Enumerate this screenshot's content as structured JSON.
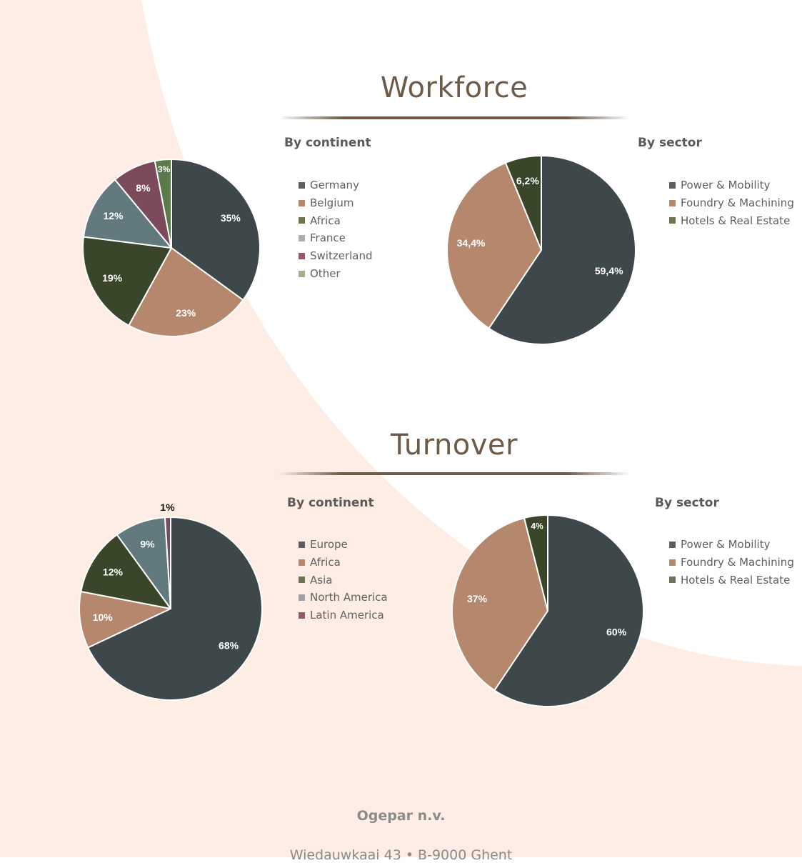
{
  "colors": {
    "background": "#fdede4",
    "title": "#6e5a48",
    "slice_border": "#ffffff"
  },
  "workforce": {
    "title": "Workforce",
    "by_continent_label": "By continent",
    "by_sector_label": "By sector"
  },
  "turnover": {
    "title": "Turnover",
    "by_continent_label": "By continent",
    "by_sector_label": "By sector"
  },
  "footer": {
    "company": "Ogepar n.v.",
    "address": "Wiedauwkaai 43 • B-9000 Ghent"
  },
  "chart_data": [
    {
      "id": "workforce-continent",
      "type": "pie",
      "title": "Workforce by continent",
      "slices": [
        {
          "label": "Germany",
          "value": 35,
          "text": "35%",
          "color": "#3e484a"
        },
        {
          "label": "Belgium",
          "value": 23,
          "text": "23%",
          "color": "#b5876d"
        },
        {
          "label": "Africa",
          "value": 19,
          "text": "19%",
          "color": "#39462a"
        },
        {
          "label": "France",
          "value": 12,
          "text": "12%",
          "color": "#627a7e"
        },
        {
          "label": "Switzerland",
          "value": 8,
          "text": "8%",
          "color": "#7b4a5d"
        },
        {
          "label": "Other",
          "value": 3,
          "text": "3%",
          "color": "#5a7a4a"
        }
      ],
      "legend": [
        {
          "label": "Germany",
          "color": "#5e5e5e"
        },
        {
          "label": "Belgium",
          "color": "#b5876d"
        },
        {
          "label": "Africa",
          "color": "#6a7352"
        },
        {
          "label": "France",
          "color": "#a9afb2"
        },
        {
          "label": "Switzerland",
          "color": "#95596d"
        },
        {
          "label": "Other",
          "color": "#a0b08a"
        }
      ]
    },
    {
      "id": "workforce-sector",
      "type": "pie",
      "title": "Workforce by sector",
      "slices": [
        {
          "label": "Power & Mobility",
          "value": 59.4,
          "text": "59,4%",
          "color": "#3e484a"
        },
        {
          "label": "Foundry & Machining",
          "value": 34.4,
          "text": "34,4%",
          "color": "#b5876d"
        },
        {
          "label": "Hotels & Real Estate",
          "value": 6.2,
          "text": "6,2%",
          "color": "#39462a"
        }
      ],
      "legend": [
        {
          "label": "Power & Mobility",
          "color": "#5e5e5e"
        },
        {
          "label": "Foundry & Machining",
          "color": "#b5876d"
        },
        {
          "label": "Hotels & Real Estate",
          "color": "#6a7352"
        }
      ]
    },
    {
      "id": "turnover-continent",
      "type": "pie",
      "title": "Turnover by continent",
      "slices": [
        {
          "label": "Europe",
          "value": 68,
          "text": "68%",
          "color": "#3e484a"
        },
        {
          "label": "Africa",
          "value": 10,
          "text": "10%",
          "color": "#b5876d"
        },
        {
          "label": "Asia",
          "value": 12,
          "text": "12%",
          "color": "#39462a"
        },
        {
          "label": "North America",
          "value": 9,
          "text": "9%",
          "color": "#627a7e"
        },
        {
          "label": "Latin America",
          "value": 1,
          "text": "1%",
          "color": "#7b4a5d"
        }
      ],
      "legend": [
        {
          "label": "Europe",
          "color": "#5e5e5e"
        },
        {
          "label": "Africa",
          "color": "#b5876d"
        },
        {
          "label": "Asia",
          "color": "#6a7352"
        },
        {
          "label": "North America",
          "color": "#a0a0a5"
        },
        {
          "label": "Latin America",
          "color": "#95596d"
        }
      ]
    },
    {
      "id": "turnover-sector",
      "type": "pie",
      "title": "Turnover by sector",
      "slices": [
        {
          "label": "Power & Mobility",
          "value": 60,
          "text": "60%",
          "color": "#3e484a"
        },
        {
          "label": "Foundry & Machining",
          "value": 37,
          "text": "37%",
          "color": "#b5876d"
        },
        {
          "label": "Hotels & Real Estate",
          "value": 4,
          "text": "4%",
          "color": "#39462a"
        }
      ],
      "legend": [
        {
          "label": "Power & Mobility",
          "color": "#5e5e5e"
        },
        {
          "label": "Foundry & Machining",
          "color": "#b5876d"
        },
        {
          "label": "Hotels & Real Estate",
          "color": "#6a7352"
        }
      ]
    }
  ]
}
